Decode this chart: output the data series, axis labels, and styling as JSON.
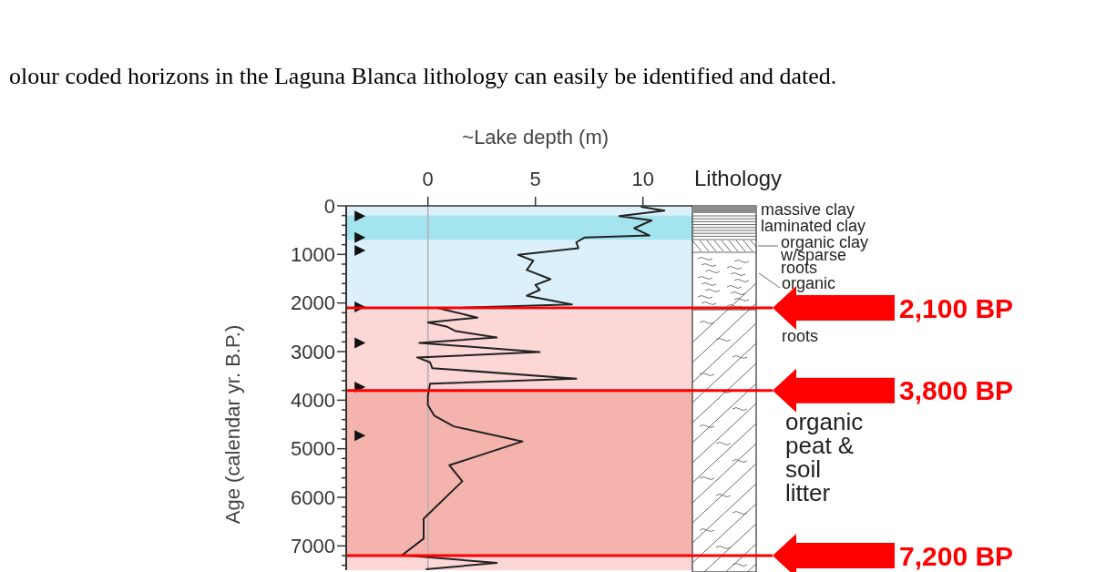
{
  "chart_data": {
    "type": "line",
    "xlabel": "~Lake depth (m)",
    "ylabel": "Age (calendar yr. B.P.)",
    "xlim": [
      -3.8,
      12.3
    ],
    "xticks": [
      0,
      5,
      10
    ],
    "ylim": [
      7500,
      0
    ],
    "yticks": [
      0,
      {
        "value": 200,
        "label": null
      },
      {
        "value": 400,
        "label": null
      },
      {
        "value": 600,
        "label": null
      },
      {
        "value": 800,
        "label": null
      },
      1000,
      {
        "value": 1200,
        "label": null
      },
      {
        "value": 1400,
        "label": null
      },
      {
        "value": 1600,
        "label": null
      },
      {
        "value": 1800,
        "label": null
      },
      2000,
      {
        "value": 2200,
        "label": null
      },
      {
        "value": 2400,
        "label": null
      },
      {
        "value": 2600,
        "label": null
      },
      {
        "value": 2800,
        "label": null
      },
      3000,
      {
        "value": 3200,
        "label": null
      },
      {
        "value": 3400,
        "label": null
      },
      {
        "value": 3600,
        "label": null
      },
      {
        "value": 3800,
        "label": null
      },
      4000,
      {
        "value": 4200,
        "label": null
      },
      {
        "value": 4400,
        "label": null
      },
      {
        "value": 4600,
        "label": null
      },
      {
        "value": 4800,
        "label": null
      },
      5000,
      {
        "value": 5200,
        "label": null
      },
      {
        "value": 5400,
        "label": null
      },
      {
        "value": 5600,
        "label": null
      },
      {
        "value": 5800,
        "label": null
      },
      6000,
      {
        "value": 6200,
        "label": null
      },
      {
        "value": 6400,
        "label": null
      },
      {
        "value": 6600,
        "label": null
      },
      {
        "value": 6800,
        "label": null
      },
      7000,
      {
        "value": 7200,
        "label": null
      },
      {
        "value": 7400,
        "label": null
      }
    ],
    "series": [
      {
        "type": "line",
        "color": "#222222",
        "line_style": "solid",
        "x": [
          9.9,
          11,
          8.9,
          10.4,
          9.6,
          10.3,
          7.3,
          6.9,
          7,
          4.2,
          4.9,
          4.6,
          5.7,
          5,
          5.2,
          4.6,
          6.7,
          0.5,
          2.3,
          0,
          0.9,
          1.3,
          3.2,
          -0.4,
          5.2,
          -0.5,
          0.1,
          0.2,
          6.9,
          0.1,
          0,
          0,
          0.3,
          1.2,
          4.4,
          1,
          1.6,
          -0.2,
          -0.2,
          -1.2,
          3.2,
          -0.1
        ],
        "values": [
          20,
          100,
          210,
          300,
          460,
          610,
          650,
          750,
          870,
          1010,
          1130,
          1320,
          1510,
          1630,
          1730,
          1850,
          2030,
          2110,
          2300,
          2400,
          2490,
          2580,
          2710,
          2820,
          3010,
          3120,
          3220,
          3340,
          3560,
          3660,
          3910,
          4100,
          4320,
          4540,
          4850,
          5340,
          5670,
          6440,
          6850,
          7190,
          7350,
          7480
        ]
      },
      {
        "type": "scatter",
        "color": "#111111",
        "marker": "triangle",
        "x": [
          -3.2,
          -3.2,
          -3.2,
          -3.2,
          -3.2,
          -3.2,
          -3.2
        ],
        "values": [
          210,
          650,
          920,
          2080,
          2820,
          3730,
          4730
        ]
      }
    ],
    "bands": [
      {
        "axis": "y",
        "from": 0,
        "to": 2150,
        "color": "#dcf0fb"
      },
      {
        "axis": "y",
        "from": 200,
        "to": 700,
        "color": "#a4e4ef"
      },
      {
        "axis": "y",
        "from": 2150,
        "to": 3800,
        "color": "#fdd6d6"
      },
      {
        "axis": "y",
        "from": 3800,
        "to": 7200,
        "color": "#f5b3ae"
      },
      {
        "axis": "y",
        "from": 7200,
        "to": 7500,
        "color": "#fdd6d6"
      }
    ],
    "ref_lines": [
      {
        "axis": "x",
        "value": 0,
        "color": "#b0b0b0"
      },
      {
        "axis": "y",
        "value": 2100,
        "label": "2,100 BP",
        "color": "#ff0000"
      },
      {
        "axis": "y",
        "value": 3800,
        "label": "3,800 BP",
        "color": "#ff0000"
      },
      {
        "axis": "y",
        "value": 7200,
        "label": "7,200 BP",
        "color": "#ff0000"
      }
    ],
    "annotations": [
      "olour coded horizons in the Laguna Blanca lithology can easily be identified and dated.",
      "Lithology",
      "massive clay",
      "laminated clay",
      "organic clay w/sparse roots",
      "organic",
      "roots",
      "organic peat & soil litter"
    ]
  }
}
